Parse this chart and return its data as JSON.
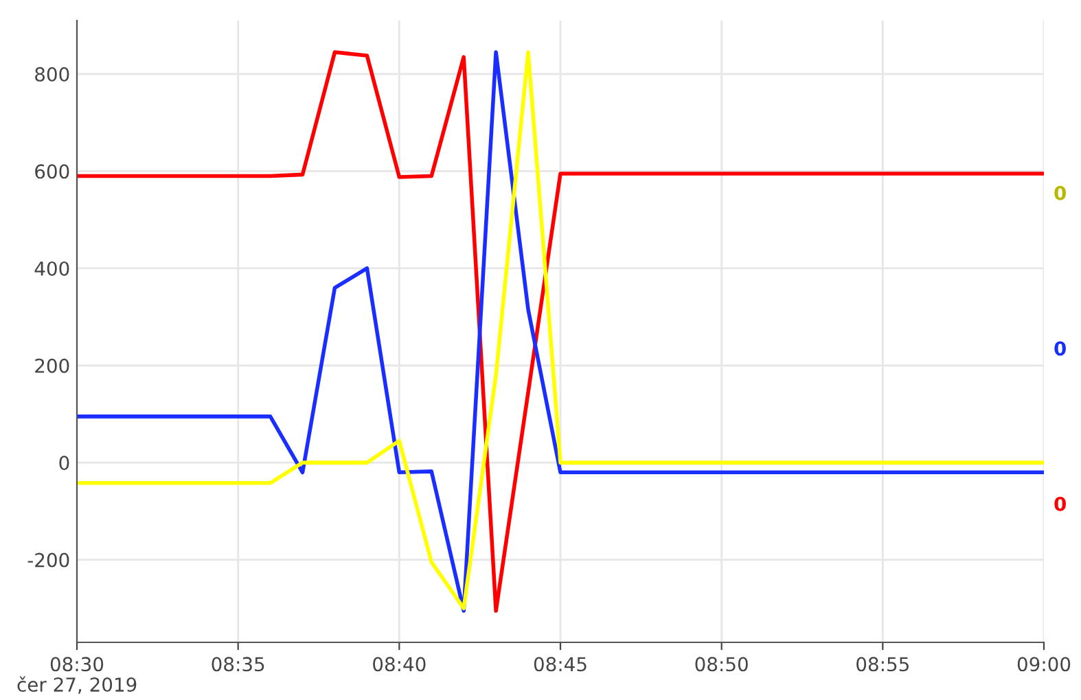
{
  "chart_data": {
    "type": "line",
    "x": [
      "2019-06-27T08:30",
      "2019-06-27T08:36",
      "2019-06-27T08:37",
      "2019-06-27T08:38",
      "2019-06-27T08:39",
      "2019-06-27T08:40",
      "2019-06-27T08:41",
      "2019-06-27T08:42",
      "2019-06-27T08:43",
      "2019-06-27T08:44",
      "2019-06-27T08:45",
      "2019-06-27T09:00"
    ],
    "series": [
      {
        "color": "#ff0000",
        "values": [
          590,
          590,
          593,
          845,
          838,
          588,
          590,
          835,
          -305,
          145,
          595,
          595
        ]
      },
      {
        "color": "#1a2eff",
        "values": [
          95,
          95,
          -20,
          360,
          400,
          -20,
          -18,
          -305,
          845,
          315,
          -20,
          -20
        ]
      },
      {
        "color": "#ffff00",
        "values": [
          -42,
          -42,
          0,
          0,
          0,
          45,
          -205,
          -300,
          180,
          845,
          0,
          0
        ]
      }
    ],
    "xlim": [
      "2019-06-27T08:30",
      "2019-06-27T09:00"
    ],
    "xticks": [
      {
        "value": "2019-06-27T08:30",
        "label": "08:30"
      },
      {
        "value": "2019-06-27T08:35",
        "label": "08:35"
      },
      {
        "value": "2019-06-27T08:40",
        "label": "08:40"
      },
      {
        "value": "2019-06-27T08:45",
        "label": "08:45"
      },
      {
        "value": "2019-06-27T08:50",
        "label": "08:50"
      },
      {
        "value": "2019-06-27T08:55",
        "label": "08:55"
      },
      {
        "value": "2019-06-27T09:00",
        "label": "09:00"
      }
    ],
    "ylim": [
      -370,
      910
    ],
    "yticks": [
      -200,
      0,
      200,
      400,
      600,
      800
    ],
    "grid": true,
    "marker": "none",
    "line_style": "solid",
    "annotations": [
      "čer 27, 2019",
      "0",
      "0",
      "0"
    ]
  }
}
